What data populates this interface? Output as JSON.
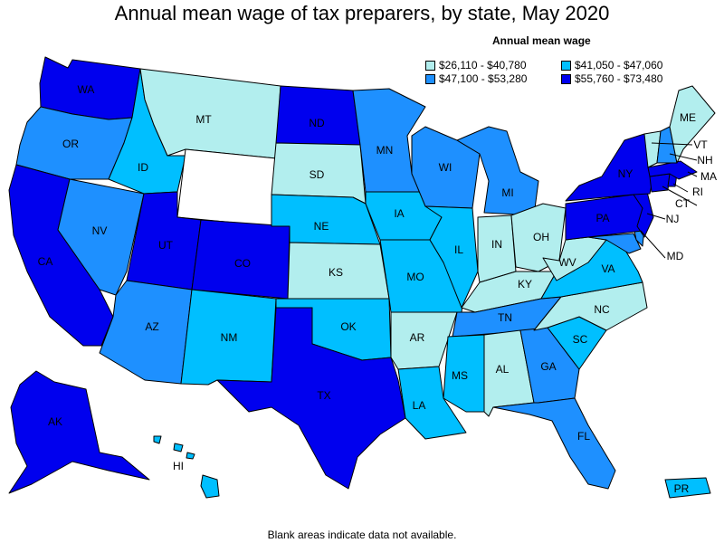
{
  "title": "Annual mean wage of tax preparers, by state, May 2020",
  "legend": {
    "title": "Annual mean wage",
    "items": [
      {
        "key": "c1",
        "label": "$26,110 - $40,780",
        "color": "#b2eeee"
      },
      {
        "key": "c2",
        "label": "$41,050 - $47,060",
        "color": "#00bfff"
      },
      {
        "key": "c3",
        "label": "$47,100 - $53,280",
        "color": "#1e90ff"
      },
      {
        "key": "c4",
        "label": "$55,760 - $73,480",
        "color": "#0000ee"
      }
    ]
  },
  "colors": {
    "none": "#ffffff",
    "border": "#000000"
  },
  "footnote": "Blank areas indicate data not available.",
  "states": {
    "WA": "c4",
    "OR": "c3",
    "CA": "c4",
    "NV": "c3",
    "ID": "c2",
    "MT": "c1",
    "WY": "none",
    "UT": "c4",
    "CO": "c4",
    "AZ": "c3",
    "NM": "c2",
    "ND": "c4",
    "SD": "c1",
    "NE": "c2",
    "KS": "c1",
    "OK": "c2",
    "TX": "c4",
    "MN": "c3",
    "IA": "c2",
    "MO": "c2",
    "AR": "c1",
    "LA": "c2",
    "WI": "c3",
    "IL": "c2",
    "MI": "c3",
    "IN": "c1",
    "OH": "c1",
    "KY": "c1",
    "TN": "c3",
    "MS": "c2",
    "AL": "c1",
    "GA": "c3",
    "FL": "c3",
    "SC": "c2",
    "NC": "c1",
    "VA": "c2",
    "WV": "c1",
    "MD": "c3",
    "DE": "c3",
    "PA": "c4",
    "NJ": "c4",
    "NY": "c4",
    "CT": "c4",
    "RI": "c4",
    "MA": "c4",
    "VT": "c1",
    "NH": "c3",
    "ME": "c1",
    "AK": "c4",
    "HI": "c2",
    "PR": "c2"
  },
  "labels": {
    "WA": "WA",
    "OR": "OR",
    "CA": "CA",
    "NV": "NV",
    "ID": "ID",
    "MT": "MT",
    "UT": "UT",
    "CO": "CO",
    "AZ": "AZ",
    "NM": "NM",
    "ND": "ND",
    "SD": "SD",
    "NE": "NE",
    "KS": "KS",
    "OK": "OK",
    "TX": "TX",
    "MN": "MN",
    "IA": "IA",
    "MO": "MO",
    "AR": "AR",
    "LA": "LA",
    "WI": "WI",
    "IL": "IL",
    "MI": "MI",
    "IN": "IN",
    "OH": "OH",
    "KY": "KY",
    "TN": "TN",
    "MS": "MS",
    "AL": "AL",
    "GA": "GA",
    "FL": "FL",
    "SC": "SC",
    "NC": "NC",
    "VA": "VA",
    "WV": "WV",
    "MD": "MD",
    "PA": "PA",
    "NJ": "NJ",
    "NY": "NY",
    "CT": "CT",
    "RI": "RI",
    "MA": "MA",
    "VT": "VT",
    "NH": "NH",
    "ME": "ME",
    "AK": "AK",
    "HI": "HI",
    "PR": "PR"
  }
}
